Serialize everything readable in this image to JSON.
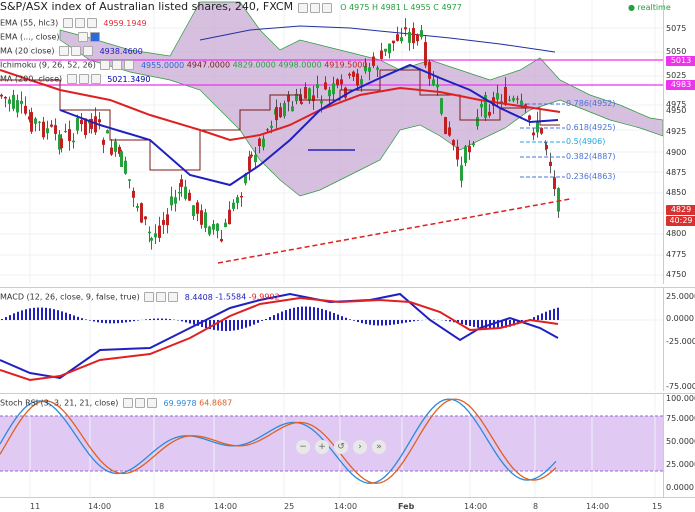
{
  "main": {
    "title": "S&P/ASX index of Australian listed shares, 240, FXCM",
    "ohlc": "O 4975  H 4981  L 4955  C 4977",
    "realtime": "realtime",
    "indicators": [
      {
        "name": "EMA (55, hlc3)",
        "value": "4959.1949",
        "color": "#e0303a"
      },
      {
        "name": "EMA (..., close)",
        "value": "",
        "color": "#2b6ad9"
      },
      {
        "name": "MA (20 close)",
        "value": "4938.4600",
        "color": "#2020c0"
      },
      {
        "name": "Ichimoku (9, 26, 52, 26)",
        "values": [
          "4955.0000",
          "4947.0000",
          "4829.0000",
          "4998.0000",
          "4919.5000"
        ]
      },
      {
        "name": "MA (200, close)",
        "value": "5021.3490",
        "color": "#0000aa"
      }
    ],
    "price_ticks": [
      "5075",
      "5050",
      "5025",
      "5000",
      "4975",
      "4950",
      "4925",
      "4900",
      "4875",
      "4850",
      "4825",
      "4800",
      "4775",
      "4750"
    ],
    "price_tags": [
      {
        "label": "5013",
        "color": "#ee33ee"
      },
      {
        "label": "4983",
        "color": "#ee33ee"
      },
      {
        "label": "4829",
        "color": "#d93030"
      },
      {
        "label": "40:29",
        "color": "#d93030"
      }
    ],
    "fib_levels": [
      {
        "label": "0.786(4952)",
        "color": "#4a74d8"
      },
      {
        "label": "0.618(4925)",
        "color": "#4a74d8"
      },
      {
        "label": "0.5(4906)",
        "color": "#22aadd"
      },
      {
        "label": "0.382(4887)",
        "color": "#4a74d8"
      },
      {
        "label": "0.236(4863)",
        "color": "#4a74d8"
      }
    ],
    "colors": {
      "bull": "#26a03c",
      "bear": "#c02020",
      "cloud": "#c9a9d6",
      "trend": "#e02020",
      "hline": "#ee33ee"
    }
  },
  "macd": {
    "title": "MACD (12, 26, close, 9, false, true)",
    "values": [
      "8.4408",
      "-1.5584",
      "-9.9992"
    ],
    "ticks": [
      "25.0000",
      "0.0000",
      "-25.0000",
      "-75.0000"
    ]
  },
  "stoch": {
    "title": "Stoch RSI (3, 3, 21, 21, close)",
    "values": [
      "69.9978",
      "64.8687"
    ],
    "ticks": [
      "100.0000",
      "75.0000",
      "50.0000",
      "25.0000",
      "0.0000"
    ]
  },
  "time_axis": [
    "11",
    "14:00",
    "18",
    "14:00",
    "25",
    "14:00",
    "Feb",
    "14:00",
    "8",
    "14:00",
    "15"
  ],
  "nav": [
    "−",
    "+",
    "↺",
    "›",
    "»"
  ]
}
